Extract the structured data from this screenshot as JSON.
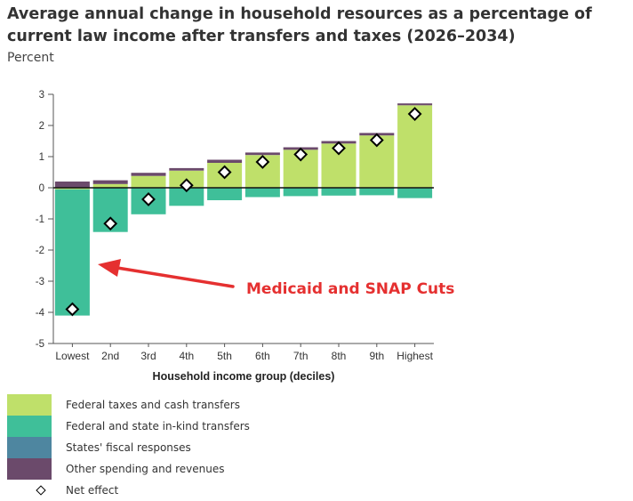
{
  "chart_data": {
    "type": "bar",
    "stacked": true,
    "title": "Average annual change in household resources as a percentage of current law income after transfers and taxes (2026–2034)",
    "subtitle": "Percent",
    "xlabel": "Household income group (deciles)",
    "ylabel": "Percent",
    "ylim": [
      -5,
      3
    ],
    "yticks": [
      3,
      2,
      1,
      0,
      -1,
      -2,
      -3,
      -4,
      -5
    ],
    "grid": false,
    "legend_position": "bottom-left",
    "categories": [
      "Lowest",
      "2nd",
      "3rd",
      "4th",
      "5th",
      "6th",
      "7th",
      "8th",
      "9th",
      "Highest"
    ],
    "series": [
      {
        "name": "Federal taxes and cash transfers",
        "color": "#bfe06a",
        "values": [
          -0.05,
          0.12,
          0.38,
          0.55,
          0.8,
          1.05,
          1.22,
          1.42,
          1.68,
          2.65
        ]
      },
      {
        "name": "Federal and state in-kind transfers",
        "color": "#3fbf99",
        "values": [
          -4.05,
          -1.42,
          -0.85,
          -0.58,
          -0.4,
          -0.3,
          -0.27,
          -0.25,
          -0.24,
          -0.33
        ]
      },
      {
        "name": "States' fiscal responses",
        "color": "#4e86a0",
        "values": [
          0,
          0,
          0,
          0,
          0,
          0,
          0,
          0,
          0,
          0
        ]
      },
      {
        "name": "Other spending and revenues",
        "color": "#6b4a6b",
        "values": [
          0.2,
          0.12,
          0.1,
          0.08,
          0.1,
          0.08,
          0.08,
          0.08,
          0.08,
          0.06
        ]
      }
    ],
    "net_effect": {
      "name": "Net effect",
      "values": [
        -3.9,
        -1.15,
        -0.37,
        0.08,
        0.5,
        0.83,
        1.07,
        1.27,
        1.53,
        2.37
      ]
    },
    "annotation": {
      "text": "Medicaid and SNAP Cuts",
      "color": "#e53030",
      "points_to": "Lowest"
    }
  }
}
